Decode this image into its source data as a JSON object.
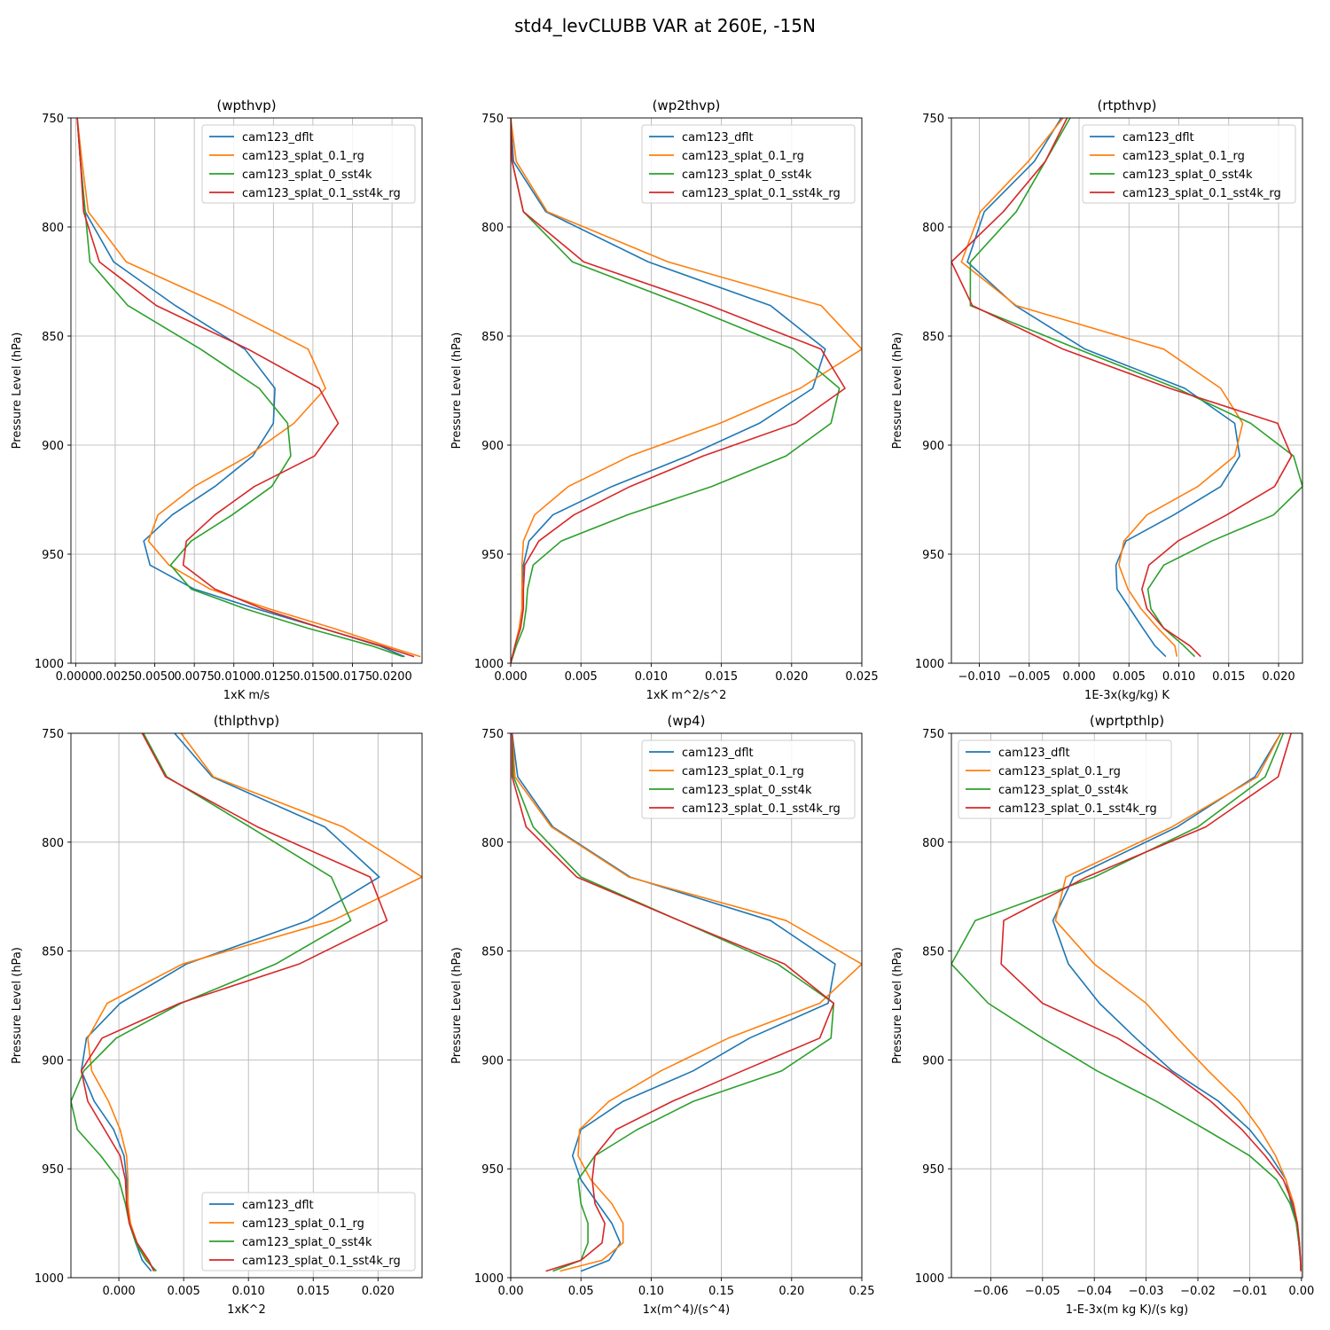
{
  "figure_title": "std4_levCLUBB VAR at 260E, -15N",
  "colors": {
    "cam123_dflt": "#1f77b4",
    "cam123_splat_0.1_rg": "#ff7f0e",
    "cam123_splat_0_sst4k": "#2ca02c",
    "cam123_splat_0.1_sst4k_rg": "#d62728"
  },
  "chart_data": [
    {
      "type": "line",
      "title": "(wpthvp)",
      "xlabel": "1xK m/s",
      "ylabel": "Pressure Level (hPa)",
      "xlim": [
        -0.0003,
        0.0219
      ],
      "ylim": [
        1000,
        750
      ],
      "xticks": [
        0.0,
        0.0025,
        0.005,
        0.0075,
        0.01,
        0.0125,
        0.015,
        0.0175,
        0.02
      ],
      "xtick_labels": [
        "0.0000",
        "0.0025",
        "0.0050",
        "0.0075",
        "0.0100",
        "0.0125",
        "0.0150",
        "0.0175",
        "0.0200"
      ],
      "yticks": [
        750,
        800,
        850,
        900,
        950,
        1000
      ],
      "ytick_labels": [
        "750",
        "800",
        "850",
        "900",
        "950",
        "1000"
      ],
      "legend_loc": "upper-right",
      "levels": [
        750,
        770,
        793,
        816,
        836,
        856,
        874,
        890,
        905,
        919,
        932,
        944,
        955,
        966,
        975,
        984,
        992,
        997
      ],
      "series": [
        {
          "name": "cam123_dflt",
          "values": [
            0.0001,
            0.0003,
            0.0006,
            0.0024,
            0.0063,
            0.0107,
            0.0126,
            0.0125,
            0.0112,
            0.0088,
            0.0061,
            0.0043,
            0.0047,
            0.0075,
            0.0114,
            0.0156,
            0.0192,
            0.0208
          ]
        },
        {
          "name": "cam123_splat_0.1_rg",
          "values": [
            0.0001,
            0.0004,
            0.0008,
            0.0032,
            0.0093,
            0.0147,
            0.0158,
            0.0138,
            0.0109,
            0.0075,
            0.0052,
            0.0046,
            0.0059,
            0.0085,
            0.0122,
            0.0163,
            0.0196,
            0.0218
          ]
        },
        {
          "name": "cam123_splat_0_sst4k",
          "values": [
            0.0001,
            0.0003,
            0.0006,
            0.0009,
            0.0033,
            0.0079,
            0.0116,
            0.0134,
            0.0136,
            0.0124,
            0.0099,
            0.0073,
            0.006,
            0.0073,
            0.0107,
            0.0147,
            0.0187,
            0.0207
          ]
        },
        {
          "name": "cam123_splat_0.1_sst4k_rg",
          "values": [
            0.0001,
            0.0003,
            0.0005,
            0.0015,
            0.0051,
            0.0109,
            0.0154,
            0.0166,
            0.0151,
            0.0113,
            0.0088,
            0.007,
            0.0068,
            0.0088,
            0.0118,
            0.0156,
            0.0193,
            0.0214
          ]
        }
      ]
    },
    {
      "type": "line",
      "title": "(wp2thvp)",
      "xlabel": "1xK m^2/s^2",
      "ylabel": "Pressure Level (hPa)",
      "xlim": [
        0.0,
        0.025
      ],
      "ylim": [
        1000,
        750
      ],
      "xticks": [
        0.0,
        0.005,
        0.01,
        0.015,
        0.02,
        0.025
      ],
      "xtick_labels": [
        "0.000",
        "0.005",
        "0.010",
        "0.015",
        "0.020",
        "0.025"
      ],
      "yticks": [
        750,
        800,
        850,
        900,
        950,
        1000
      ],
      "ytick_labels": [
        "750",
        "800",
        "850",
        "900",
        "950",
        "1000"
      ],
      "legend_loc": "upper-right",
      "levels": [
        750,
        770,
        793,
        816,
        836,
        856,
        874,
        890,
        905,
        919,
        932,
        944,
        955,
        966,
        975,
        984,
        992,
        1000
      ],
      "series": [
        {
          "name": "cam123_dflt",
          "values": [
            0.0,
            0.0002,
            0.0025,
            0.0098,
            0.0185,
            0.0224,
            0.0215,
            0.0177,
            0.0126,
            0.0072,
            0.003,
            0.0013,
            0.0009,
            0.0008,
            0.0008,
            0.0006,
            0.0003,
            0.0
          ]
        },
        {
          "name": "cam123_splat_0.1_rg",
          "values": [
            0.0,
            0.0004,
            0.0026,
            0.0112,
            0.0221,
            0.025,
            0.0206,
            0.0149,
            0.0085,
            0.0041,
            0.0017,
            0.0009,
            0.0008,
            0.0008,
            0.0008,
            0.0006,
            0.0003,
            0.0
          ]
        },
        {
          "name": "cam123_splat_0_sst4k",
          "values": [
            0.0,
            0.0001,
            0.0009,
            0.0044,
            0.0125,
            0.0201,
            0.0234,
            0.0228,
            0.0196,
            0.0143,
            0.0083,
            0.0036,
            0.0016,
            0.0012,
            0.0011,
            0.0009,
            0.0004,
            0.0
          ]
        },
        {
          "name": "cam123_splat_0.1_sst4k_rg",
          "values": [
            0.0,
            0.0001,
            0.0009,
            0.0052,
            0.0142,
            0.0221,
            0.0238,
            0.0203,
            0.0137,
            0.0085,
            0.0045,
            0.002,
            0.001,
            0.0009,
            0.0009,
            0.0007,
            0.0003,
            0.0
          ]
        }
      ]
    },
    {
      "type": "line",
      "title": "(rtpthvp)",
      "xlabel": "1E-3x(kg/kg) K",
      "ylabel": "Pressure Level (hPa)",
      "xlim": [
        -0.0128,
        0.0224
      ],
      "ylim": [
        1000,
        750
      ],
      "xticks": [
        -0.01,
        -0.005,
        0.0,
        0.005,
        0.01,
        0.015,
        0.02
      ],
      "xtick_labels": [
        "−0.010",
        "−0.005",
        "0.000",
        "0.005",
        "0.010",
        "0.015",
        "0.020"
      ],
      "yticks": [
        750,
        800,
        850,
        900,
        950,
        1000
      ],
      "ytick_labels": [
        "750",
        "800",
        "850",
        "900",
        "950",
        "1000"
      ],
      "legend_loc": "upper-right",
      "levels": [
        750,
        770,
        793,
        816,
        836,
        856,
        874,
        890,
        905,
        919,
        932,
        944,
        955,
        966,
        975,
        984,
        992,
        997
      ],
      "series": [
        {
          "name": "cam123_dflt",
          "values": [
            -0.0018,
            -0.0045,
            -0.0095,
            -0.0112,
            -0.0064,
            0.0006,
            0.0106,
            0.0156,
            0.0161,
            0.0142,
            0.0095,
            0.0047,
            0.0037,
            0.0038,
            0.0051,
            0.0064,
            0.0076,
            0.0087
          ]
        },
        {
          "name": "cam123_splat_0.1_rg",
          "values": [
            -0.0016,
            -0.0051,
            -0.0099,
            -0.0118,
            -0.0063,
            0.0085,
            0.0142,
            0.0164,
            0.0156,
            0.0119,
            0.0068,
            0.0045,
            0.004,
            0.0049,
            0.0062,
            0.0079,
            0.0096,
            0.0098
          ]
        },
        {
          "name": "cam123_splat_0_sst4k",
          "values": [
            -0.0009,
            -0.0034,
            -0.0063,
            -0.0109,
            -0.0109,
            -0.0001,
            0.0098,
            0.0172,
            0.0215,
            0.0224,
            0.0195,
            0.0133,
            0.0085,
            0.0069,
            0.0072,
            0.0085,
            0.0105,
            0.0116
          ]
        },
        {
          "name": "cam123_splat_0.1_sst4k_rg",
          "values": [
            -0.0012,
            -0.0034,
            -0.0076,
            -0.0128,
            -0.0107,
            -0.0016,
            0.0091,
            0.0199,
            0.0213,
            0.0196,
            0.0148,
            0.0099,
            0.007,
            0.0063,
            0.0068,
            0.0085,
            0.0111,
            0.0122
          ]
        }
      ]
    },
    {
      "type": "line",
      "title": "(thlpthvp)",
      "xlabel": "1xK^2",
      "ylabel": "Pressure Level (hPa)",
      "xlim": [
        -0.0037,
        0.0234
      ],
      "ylim": [
        1000,
        750
      ],
      "xticks": [
        0.0,
        0.005,
        0.01,
        0.015,
        0.02
      ],
      "xtick_labels": [
        "0.000",
        "0.005",
        "0.010",
        "0.015",
        "0.020"
      ],
      "yticks": [
        750,
        800,
        850,
        900,
        950,
        1000
      ],
      "ytick_labels": [
        "750",
        "800",
        "850",
        "900",
        "950",
        "1000"
      ],
      "legend_loc": "lower-right",
      "levels": [
        750,
        770,
        793,
        816,
        836,
        856,
        874,
        890,
        905,
        919,
        932,
        944,
        955,
        966,
        975,
        984,
        992,
        997
      ],
      "series": [
        {
          "name": "cam123_dflt",
          "values": [
            0.0043,
            0.0072,
            0.0159,
            0.0201,
            0.0146,
            0.0052,
            0.0001,
            -0.0025,
            -0.0029,
            -0.0019,
            -0.0004,
            0.0004,
            0.0006,
            0.0007,
            0.0008,
            0.0013,
            0.0018,
            0.0025
          ]
        },
        {
          "name": "cam123_splat_0.1_rg",
          "values": [
            0.0048,
            0.0073,
            0.0173,
            0.0234,
            0.0165,
            0.0049,
            -0.0009,
            -0.0024,
            -0.0021,
            -0.0008,
            0.0001,
            0.0006,
            0.0007,
            0.0007,
            0.0009,
            0.0014,
            0.0022,
            0.0028
          ]
        },
        {
          "name": "cam123_splat_0_sst4k",
          "values": [
            0.0019,
            0.0037,
            0.0101,
            0.0164,
            0.0179,
            0.0121,
            0.0048,
            -0.0002,
            -0.0027,
            -0.0037,
            -0.0032,
            -0.0014,
            0.0,
            0.0005,
            0.0008,
            0.0013,
            0.0021,
            0.0029
          ]
        },
        {
          "name": "cam123_splat_0.1_sst4k_rg",
          "values": [
            0.0018,
            0.0036,
            0.0107,
            0.0194,
            0.0207,
            0.0139,
            0.0047,
            -0.0013,
            -0.0029,
            -0.0024,
            -0.0011,
            0.0001,
            0.0005,
            0.0006,
            0.0008,
            0.0014,
            0.0023,
            0.0027
          ]
        }
      ]
    },
    {
      "type": "line",
      "title": "(wp4)",
      "xlabel": "1x(m^4)/(s^4)",
      "ylabel": "Pressure Level (hPa)",
      "xlim": [
        0.0,
        0.25
      ],
      "ylim": [
        1000,
        750
      ],
      "xticks": [
        0.0,
        0.05,
        0.1,
        0.15,
        0.2,
        0.25
      ],
      "xtick_labels": [
        "0.00",
        "0.05",
        "0.10",
        "0.15",
        "0.20",
        "0.25"
      ],
      "yticks": [
        750,
        800,
        850,
        900,
        950,
        1000
      ],
      "ytick_labels": [
        "750",
        "800",
        "850",
        "900",
        "950",
        "1000"
      ],
      "legend_loc": "upper-right",
      "levels": [
        750,
        770,
        793,
        816,
        836,
        856,
        874,
        890,
        905,
        919,
        932,
        944,
        955,
        966,
        975,
        984,
        992,
        997
      ],
      "series": [
        {
          "name": "cam123_dflt",
          "values": [
            0.001,
            0.005,
            0.03,
            0.085,
            0.185,
            0.231,
            0.226,
            0.17,
            0.13,
            0.08,
            0.05,
            0.044,
            0.05,
            0.062,
            0.072,
            0.078,
            0.07,
            0.05
          ]
        },
        {
          "name": "cam123_splat_0.1_rg",
          "values": [
            0.001,
            0.003,
            0.029,
            0.084,
            0.196,
            0.25,
            0.22,
            0.155,
            0.107,
            0.07,
            0.049,
            0.048,
            0.057,
            0.072,
            0.08,
            0.08,
            0.065,
            0.035
          ]
        },
        {
          "name": "cam123_splat_0_sst4k",
          "values": [
            0.001,
            0.002,
            0.016,
            0.05,
            0.12,
            0.19,
            0.23,
            0.228,
            0.193,
            0.13,
            0.09,
            0.06,
            0.048,
            0.05,
            0.055,
            0.055,
            0.05,
            0.03
          ]
        },
        {
          "name": "cam123_splat_0.1_sst4k_rg",
          "values": [
            0.001,
            0.001,
            0.011,
            0.047,
            0.12,
            0.195,
            0.23,
            0.22,
            0.165,
            0.115,
            0.075,
            0.06,
            0.058,
            0.06,
            0.067,
            0.065,
            0.05,
            0.025
          ]
        }
      ]
    },
    {
      "type": "line",
      "title": "(wprtpthlp)",
      "xlabel": "1-E-3x(m kg K)/(s kg)",
      "ylabel": "Pressure Level (hPa)",
      "xlim": [
        -0.0676,
        0.0002
      ],
      "ylim": [
        1000,
        750
      ],
      "xticks": [
        -0.06,
        -0.05,
        -0.04,
        -0.03,
        -0.02,
        -0.01,
        0.0
      ],
      "xtick_labels": [
        "−0.06",
        "−0.05",
        "−0.04",
        "−0.03",
        "−0.02",
        "−0.01",
        "0.00"
      ],
      "yticks": [
        750,
        800,
        850,
        900,
        950,
        1000
      ],
      "ytick_labels": [
        "750",
        "800",
        "850",
        "900",
        "950",
        "1000"
      ],
      "legend_loc": "upper-left",
      "levels": [
        750,
        770,
        793,
        816,
        836,
        856,
        874,
        890,
        905,
        919,
        932,
        944,
        955,
        966,
        975,
        984,
        992,
        997
      ],
      "series": [
        {
          "name": "cam123_dflt",
          "values": [
            -0.004,
            -0.009,
            -0.024,
            -0.044,
            -0.048,
            -0.045,
            -0.039,
            -0.032,
            -0.025,
            -0.016,
            -0.01,
            -0.006,
            -0.003,
            -0.002,
            -0.001,
            -0.0005,
            -0.0002,
            -0.0001
          ]
        },
        {
          "name": "cam123_splat_0.1_rg",
          "values": [
            -0.004,
            -0.0085,
            -0.025,
            -0.0455,
            -0.0475,
            -0.04,
            -0.03,
            -0.024,
            -0.018,
            -0.012,
            -0.008,
            -0.005,
            -0.003,
            -0.0015,
            -0.0008,
            -0.0004,
            -0.0002,
            -0.0001
          ]
        },
        {
          "name": "cam123_splat_0_sst4k",
          "values": [
            -0.0035,
            -0.007,
            -0.02,
            -0.04,
            -0.063,
            -0.0676,
            -0.0605,
            -0.05,
            -0.0395,
            -0.028,
            -0.0185,
            -0.01,
            -0.0048,
            -0.0022,
            -0.001,
            -0.0005,
            -0.0002,
            -0.0001
          ]
        },
        {
          "name": "cam123_splat_0.1_sst4k_rg",
          "values": [
            -0.002,
            -0.0045,
            -0.0185,
            -0.0415,
            -0.0575,
            -0.058,
            -0.05,
            -0.0355,
            -0.0255,
            -0.0175,
            -0.0115,
            -0.007,
            -0.0035,
            -0.0017,
            -0.0008,
            -0.0004,
            -0.0002,
            -0.0001
          ]
        }
      ]
    }
  ]
}
